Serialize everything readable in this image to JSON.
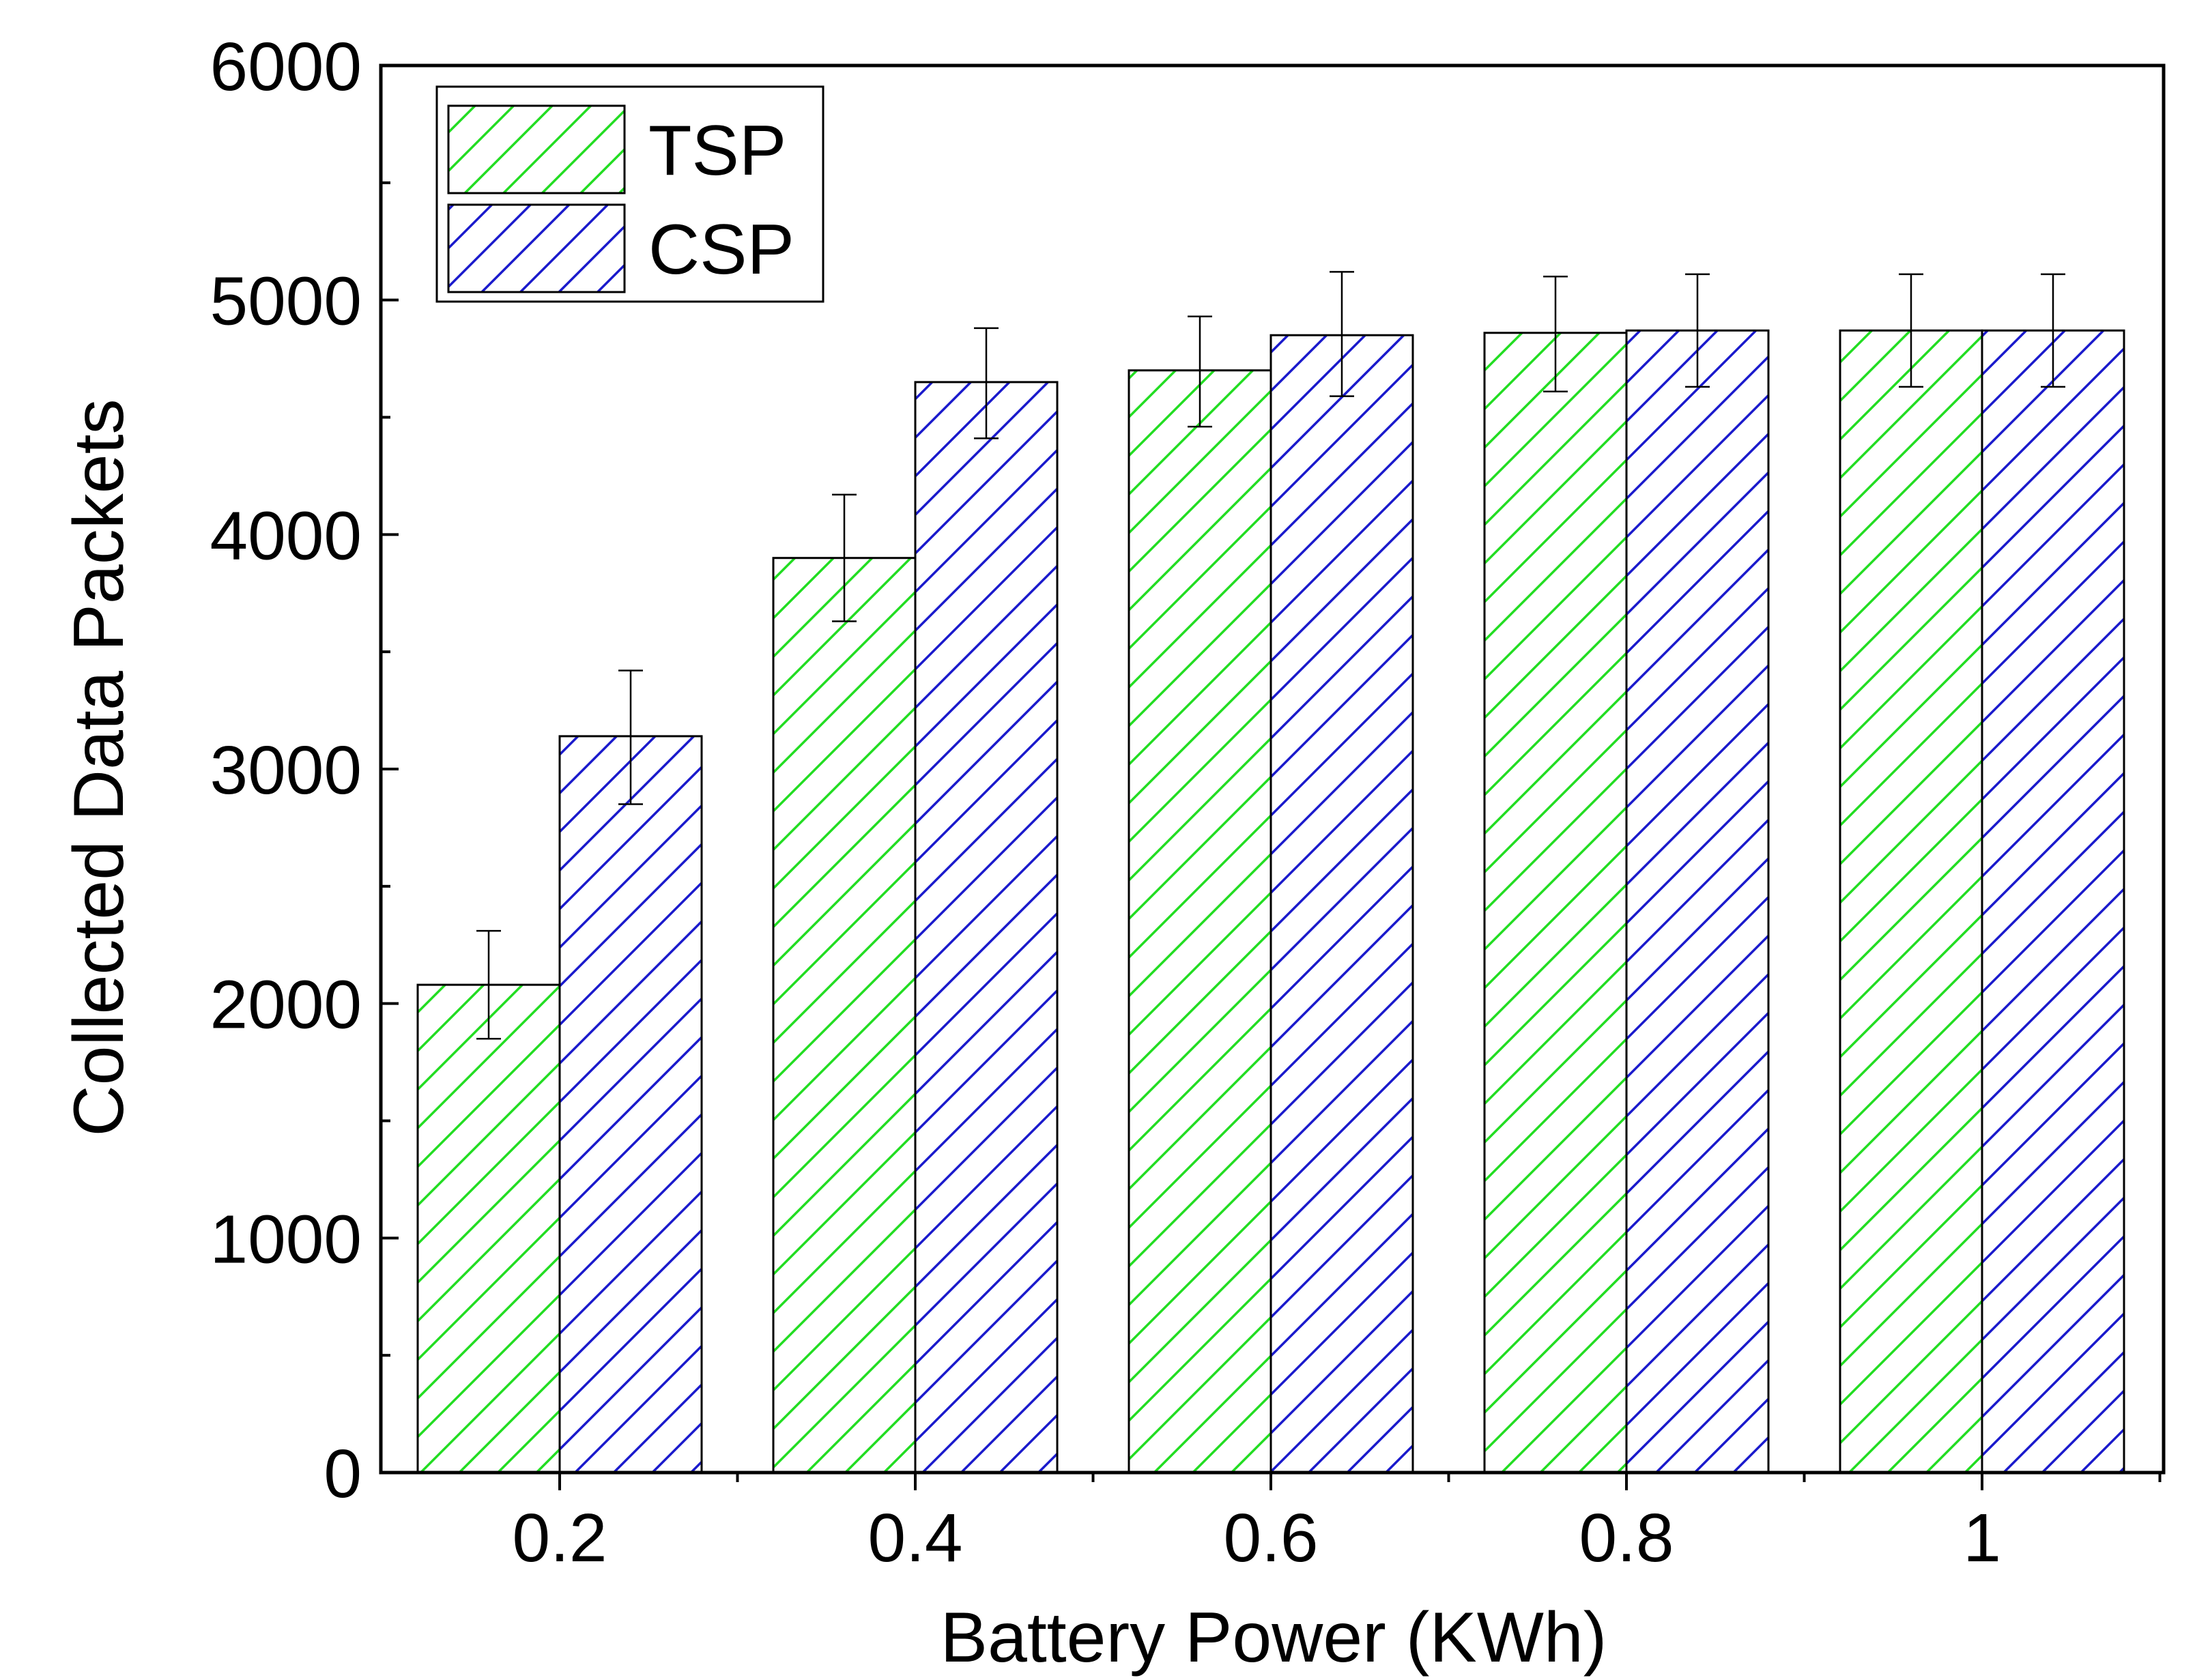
{
  "chart_data": {
    "type": "bar",
    "xlabel": "Battery Power (KWh)",
    "ylabel": "Collected Data Packets",
    "categories": [
      "0.2",
      "0.4",
      "0.6",
      "0.8",
      "1"
    ],
    "ylim": [
      0,
      6000
    ],
    "yticks": [
      "0",
      "1000",
      "2000",
      "3000",
      "4000",
      "5000",
      "6000"
    ],
    "grid": false,
    "legend_position": "top-left",
    "series": [
      {
        "name": "TSP",
        "color": "#22dd22",
        "values": [
          2080,
          3900,
          4700,
          4860,
          4870
        ],
        "error_low": [
          1850,
          3630,
          4460,
          4610,
          4630
        ],
        "error_high": [
          2310,
          4170,
          4930,
          5100,
          5110
        ]
      },
      {
        "name": "CSP",
        "color": "#1a1acc",
        "values": [
          3140,
          4650,
          4850,
          4870,
          4870
        ],
        "error_low": [
          2850,
          4410,
          4590,
          4630,
          4630
        ],
        "error_high": [
          3420,
          4880,
          5120,
          5110,
          5110
        ]
      }
    ]
  }
}
